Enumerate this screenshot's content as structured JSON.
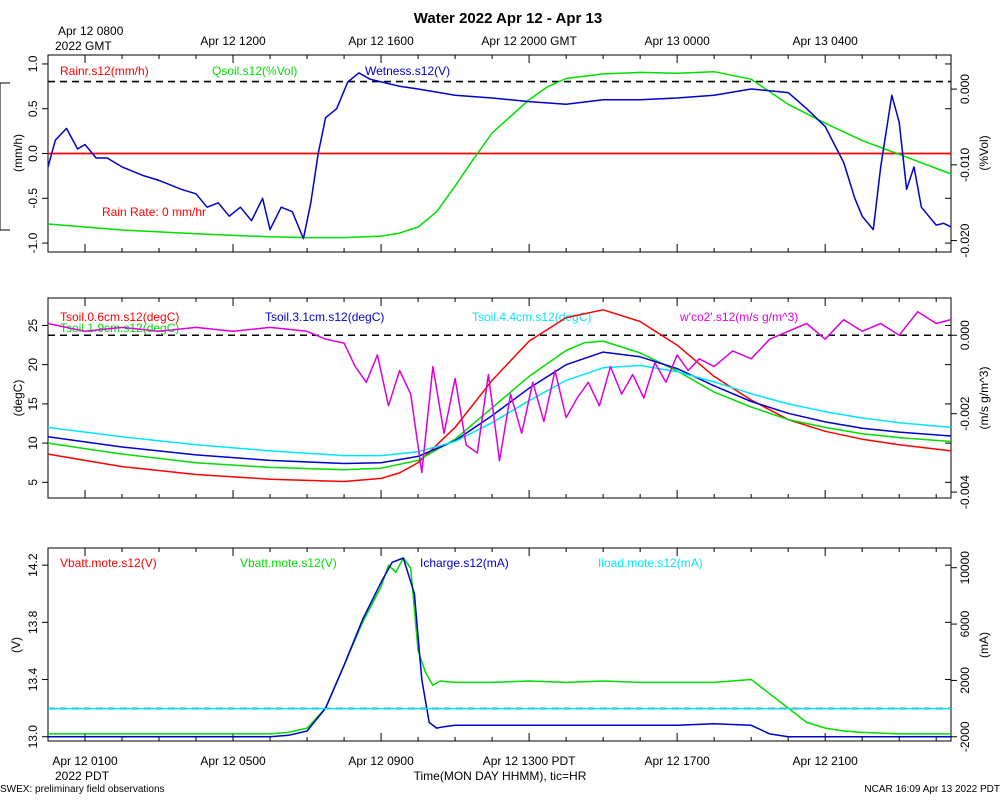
{
  "title": "Water 2022 Apr 12 - Apr 13",
  "top_axis": {
    "first_label_line1": "Apr 12 0800",
    "first_label_line2": "2022 GMT",
    "labels": [
      "Apr 12 1200",
      "Apr 12 1600",
      "Apr 12 2000 GMT",
      "Apr 13 0000",
      "Apr 13 0400"
    ],
    "hours": [
      4,
      8,
      12,
      16,
      20
    ]
  },
  "bottom_axis": {
    "labels": [
      "Apr 12 0100",
      "Apr 12 0500",
      "Apr 12 0900",
      "Apr 12 1300 PDT",
      "Apr 12 1700",
      "Apr 12 2100"
    ],
    "hours": [
      0,
      4,
      8,
      12,
      16,
      20
    ],
    "year_label": "2022 PDT",
    "xlabel": "Time(MON DAY HHMM), tic=HR"
  },
  "footer": {
    "left": "SWEX: preliminary field observations",
    "right": "NCAR 16:09 Apr 13 2022 PDT"
  },
  "colors": {
    "red": "#ff0000",
    "green": "#00dd00",
    "blue": "#0000cc",
    "cyan": "#00e5ff",
    "magenta": "#dd00dd",
    "black": "#000000"
  },
  "chart_data": [
    {
      "type": "line",
      "x_unit": "hours since Apr 12 0000 PDT",
      "xlim": [
        -1,
        23.4
      ],
      "ylabel_left": "(mm/h)",
      "ylim_left": [
        -1.1,
        1.1
      ],
      "yticks_left": [
        "1.0",
        "0.5",
        "0.0",
        "-0.5",
        "-1.0"
      ],
      "ytick_values_left": [
        1.0,
        0.5,
        0.0,
        -0.5,
        -1.0
      ],
      "ylabel_right": "(%Vol)",
      "ylim_right": [
        -0.0215,
        0.0045
      ],
      "yticks_right": [
        "0.000",
        "-0.010",
        "-0.020"
      ],
      "ytick_values_right": [
        0.0,
        -0.01,
        -0.02
      ],
      "reference_lines": [
        {
          "axis": "left",
          "y": 0.0,
          "color": "#ff0000"
        },
        {
          "axis": "right",
          "y": 0.001,
          "color": "#000000"
        }
      ],
      "annotation": "Rain Rate: 0 mm/hr",
      "series": [
        {
          "name": "Rainr.s12(mm/h)",
          "color": "#ff0000",
          "axis": "left",
          "x": [
            -1,
            23.4
          ],
          "y": [
            0.0,
            0.0
          ]
        },
        {
          "name": "Qsoil.s12(%Vol)",
          "color": "#00dd00",
          "axis": "right",
          "x": [
            -1,
            1,
            3,
            5,
            6,
            7,
            8,
            8.5,
            9,
            9.5,
            10,
            10.5,
            11,
            12,
            12.5,
            13,
            14,
            15,
            16,
            17,
            18,
            19,
            20,
            21,
            22,
            23.4
          ],
          "y": [
            -0.0178,
            -0.0186,
            -0.0191,
            -0.0195,
            -0.0196,
            -0.0196,
            -0.0194,
            -0.019,
            -0.0182,
            -0.0162,
            -0.0128,
            -0.0092,
            -0.0058,
            -0.0014,
            0.0003,
            0.0014,
            0.002,
            0.0022,
            0.0021,
            0.0023,
            0.0013,
            -0.002,
            -0.0045,
            -0.0068,
            -0.0086,
            -0.0112
          ]
        },
        {
          "name": "Wetness.s12(V)",
          "color": "#0000cc",
          "axis": "left",
          "x": [
            -1,
            -0.8,
            -0.5,
            -0.2,
            0,
            0.3,
            0.6,
            1.0,
            1.3,
            1.6,
            2.0,
            2.3,
            2.6,
            3.0,
            3.3,
            3.6,
            3.9,
            4.2,
            4.5,
            4.8,
            5.0,
            5.3,
            5.6,
            5.9,
            6.1,
            6.3,
            6.5,
            6.8,
            7.1,
            7.4,
            7.7,
            8.0,
            8.5,
            9.0,
            10.0,
            11.0,
            12.0,
            13.0,
            14.0,
            15.0,
            16.0,
            17.0,
            18.0,
            19.0,
            19.5,
            20.0,
            20.5,
            20.8,
            21.0,
            21.3,
            21.5,
            21.8,
            22.0,
            22.2,
            22.4,
            22.6,
            22.8,
            23.0,
            23.2,
            23.4
          ],
          "y": [
            -0.15,
            0.15,
            0.28,
            0.05,
            0.1,
            -0.05,
            -0.05,
            -0.15,
            -0.2,
            -0.25,
            -0.3,
            -0.35,
            -0.4,
            -0.45,
            -0.6,
            -0.55,
            -0.7,
            -0.6,
            -0.75,
            -0.5,
            -0.85,
            -0.6,
            -0.65,
            -0.95,
            -0.55,
            0.0,
            0.4,
            0.5,
            0.8,
            0.9,
            0.83,
            0.8,
            0.75,
            0.72,
            0.65,
            0.62,
            0.58,
            0.55,
            0.6,
            0.6,
            0.62,
            0.65,
            0.72,
            0.68,
            0.5,
            0.3,
            -0.1,
            -0.5,
            -0.7,
            -0.85,
            -0.15,
            0.65,
            0.35,
            -0.4,
            -0.15,
            -0.6,
            -0.7,
            -0.8,
            -0.78,
            -0.82
          ]
        }
      ]
    },
    {
      "type": "line",
      "x_unit": "hours since Apr 12 0000 PDT",
      "xlim": [
        -1,
        23.4
      ],
      "ylabel_left": "(degC)",
      "ylim_left": [
        3,
        28.5
      ],
      "yticks_left": [
        "25",
        "20",
        "15",
        "10",
        "5"
      ],
      "ytick_values_left": [
        25,
        20,
        15,
        10,
        5
      ],
      "ylabel_right": "(m/s g/m^3)",
      "ylim_right": [
        -0.00415,
        0.00095
      ],
      "yticks_right": [
        "0.000",
        "-0.002",
        "-0.004"
      ],
      "ytick_values_right": [
        0.0,
        -0.002,
        -0.004
      ],
      "reference_lines": [
        {
          "axis": "right",
          "y": 0.0,
          "color": "#000000"
        }
      ],
      "series": [
        {
          "name": "Tsoil.0.6cm.s12(degC)",
          "color": "#ff0000",
          "axis": "left",
          "x": [
            -1,
            1,
            3,
            5,
            7,
            8,
            8.5,
            9,
            10,
            11,
            12,
            13,
            14,
            15,
            16,
            17,
            18,
            19,
            20,
            21,
            22,
            23.4
          ],
          "y": [
            8.6,
            7.0,
            6.0,
            5.4,
            5.1,
            5.5,
            6.2,
            7.5,
            12.0,
            18.0,
            23.0,
            26.0,
            27.0,
            25.5,
            22.5,
            18.5,
            15.5,
            13.0,
            11.5,
            10.5,
            9.8,
            9.0
          ]
        },
        {
          "name": "Tsoil.1.9cm.s12(degC)",
          "color": "#00dd00",
          "axis": "left",
          "x": [
            -1,
            1,
            3,
            5,
            7,
            8,
            9,
            10,
            11,
            12,
            13,
            13.5,
            14,
            15,
            16,
            17,
            18,
            19,
            20,
            21,
            22,
            23.4
          ],
          "y": [
            10.0,
            8.6,
            7.5,
            6.9,
            6.6,
            6.8,
            7.8,
            10.5,
            14.5,
            18.5,
            21.8,
            22.8,
            23.0,
            21.5,
            19.2,
            16.5,
            14.6,
            13.0,
            12.0,
            11.2,
            10.7,
            10.2
          ]
        },
        {
          "name": "Tsoil.3.1cm.s12(degC)",
          "color": "#0000cc",
          "axis": "left",
          "x": [
            -1,
            1,
            3,
            5,
            7,
            8,
            9,
            10,
            11,
            12,
            13,
            14,
            15,
            16,
            17,
            18,
            19,
            20,
            21,
            22,
            23.4
          ],
          "y": [
            10.8,
            9.5,
            8.5,
            7.8,
            7.4,
            7.5,
            8.3,
            10.3,
            13.5,
            17.0,
            20.0,
            21.6,
            21.0,
            19.5,
            17.3,
            15.3,
            13.8,
            12.7,
            11.9,
            11.4,
            10.9
          ]
        },
        {
          "name": "Tsoil.4.4cm.s12(degC)",
          "color": "#00e5ff",
          "axis": "left",
          "x": [
            -1,
            1,
            3,
            5,
            7,
            8,
            9,
            10,
            11,
            12,
            13,
            14,
            15,
            16,
            17,
            18,
            19,
            20,
            21,
            22,
            23.4
          ],
          "y": [
            12.0,
            10.8,
            9.8,
            9.0,
            8.4,
            8.4,
            8.9,
            10.2,
            12.6,
            15.4,
            18.0,
            19.6,
            19.9,
            19.1,
            17.8,
            16.3,
            15.0,
            14.0,
            13.2,
            12.6,
            12.0
          ]
        },
        {
          "name": "w'co2'.s12(m/s g/m^3)",
          "color": "#dd00dd",
          "axis": "right",
          "x": [
            -1,
            0,
            1,
            2,
            3,
            4,
            5,
            6,
            6.5,
            7,
            7.3,
            7.6,
            7.9,
            8.2,
            8.5,
            8.8,
            9.1,
            9.4,
            9.7,
            10.0,
            10.3,
            10.6,
            10.9,
            11.2,
            11.5,
            11.8,
            12.1,
            12.4,
            12.7,
            13.0,
            13.3,
            13.6,
            13.9,
            14.2,
            14.5,
            14.8,
            15.1,
            15.4,
            15.7,
            16.0,
            16.3,
            16.6,
            17.0,
            17.5,
            18.0,
            18.5,
            19.0,
            19.5,
            20.0,
            20.5,
            21.0,
            21.5,
            22.0,
            22.5,
            23.0,
            23.4
          ],
          "y": [
            0.0003,
            0.0001,
            0.0002,
            0.0001,
            0.0002,
            0.0001,
            0.0002,
            0.0001,
            -0.0001,
            -0.0002,
            -0.0008,
            -0.0012,
            -0.0005,
            -0.0018,
            -0.0009,
            -0.0015,
            -0.0035,
            -0.0008,
            -0.0025,
            -0.0011,
            -0.0028,
            -0.003,
            -0.001,
            -0.0032,
            -0.0015,
            -0.0025,
            -0.0012,
            -0.0022,
            -0.0009,
            -0.0021,
            -0.0016,
            -0.0012,
            -0.0018,
            -0.0008,
            -0.0015,
            -0.001,
            -0.0016,
            -0.0007,
            -0.0012,
            -0.0005,
            -0.0009,
            -0.0006,
            -0.0008,
            -0.0004,
            -0.0006,
            -0.0001,
            0.0001,
            0.0003,
            -0.0001,
            0.0004,
            0.0001,
            0.0003,
            0.0,
            0.0006,
            0.0003,
            0.0004
          ]
        }
      ]
    },
    {
      "type": "line",
      "x_unit": "hours since Apr 12 0000 PDT",
      "xlim": [
        -1,
        23.4
      ],
      "ylabel_left": "(V)",
      "ylim_left": [
        12.97,
        14.32
      ],
      "yticks_left": [
        "14.2",
        "13.8",
        "13.4",
        "13.0"
      ],
      "ytick_values_left": [
        14.2,
        13.8,
        13.4,
        13.0
      ],
      "ylabel_right": "(mA)",
      "ylim_right": [
        -2300,
        11400
      ],
      "yticks_right": [
        "10000",
        "6000",
        "2000",
        "-2000"
      ],
      "ytick_values_right": [
        10000,
        6000,
        2000,
        -2000
      ],
      "reference_lines": [
        {
          "axis": "right",
          "y": 0,
          "color": "#000000"
        }
      ],
      "series": [
        {
          "name": "Vbatt.mote.s12(V)",
          "color": "#ff0000",
          "axis": "left",
          "x": [],
          "y": []
        },
        {
          "name": "Vbatt.mote.s12(V)",
          "color": "#00dd00",
          "axis": "left",
          "x": [
            -1,
            1,
            3,
            5,
            5.5,
            6,
            6.5,
            7,
            7.5,
            8,
            8.2,
            8.4,
            8.6,
            8.8,
            9.0,
            9.2,
            9.4,
            9.6,
            10.0,
            10.5,
            11,
            12,
            13,
            14,
            15,
            16,
            17,
            18,
            18.5,
            19,
            19.5,
            20,
            20.5,
            21,
            22,
            23.4
          ],
          "y": [
            13.02,
            13.02,
            13.02,
            13.02,
            13.03,
            13.06,
            13.2,
            13.5,
            13.8,
            14.05,
            14.2,
            14.15,
            14.25,
            14.18,
            13.6,
            13.45,
            13.36,
            13.39,
            13.38,
            13.38,
            13.38,
            13.39,
            13.38,
            13.39,
            13.38,
            13.38,
            13.38,
            13.4,
            13.3,
            13.2,
            13.1,
            13.06,
            13.04,
            13.03,
            13.02,
            13.02
          ]
        },
        {
          "name": "Icharge.s12(mA)",
          "color": "#0000cc",
          "axis": "left",
          "x": [
            -1,
            1,
            3,
            5,
            5.5,
            6,
            6.5,
            7,
            7.5,
            8,
            8.3,
            8.6,
            8.9,
            9.1,
            9.3,
            9.5,
            9.7,
            10,
            11,
            12,
            13,
            14,
            15,
            16,
            17,
            18,
            18.5,
            19,
            19.5,
            20,
            21,
            22,
            23.4
          ],
          "y": [
            13.0,
            13.0,
            13.0,
            13.0,
            13.01,
            13.04,
            13.2,
            13.5,
            13.82,
            14.08,
            14.22,
            14.25,
            14.0,
            13.4,
            13.1,
            13.06,
            13.07,
            13.08,
            13.08,
            13.08,
            13.08,
            13.08,
            13.08,
            13.08,
            13.09,
            13.08,
            13.02,
            13.0,
            13.0,
            13.0,
            13.0,
            13.0,
            13.0
          ]
        },
        {
          "name": "Iload.mote.s12(mA)",
          "color": "#00e5ff",
          "axis": "right",
          "x": [
            -1,
            23.4
          ],
          "y": [
            0,
            0
          ]
        }
      ]
    }
  ]
}
